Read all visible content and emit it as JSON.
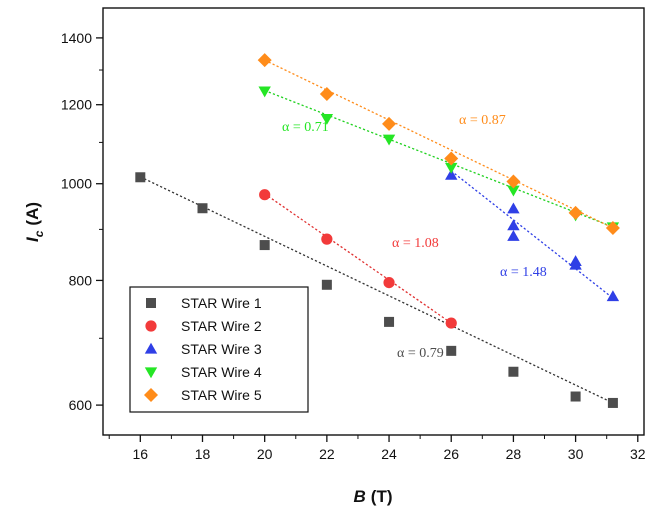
{
  "chart_data": {
    "type": "scatter",
    "title": "",
    "xlabel": {
      "var": "B",
      "unit": "(T)"
    },
    "ylabel": {
      "var": "I",
      "sub": "c",
      "unit": "(A)"
    },
    "x_range": [
      14.8,
      32.2
    ],
    "y_range": [
      560,
      1500
    ],
    "y_scale": "log",
    "x_ticks": [
      16,
      18,
      20,
      22,
      24,
      26,
      28,
      30,
      32
    ],
    "x_minor_ticks": [
      15,
      17,
      19,
      21,
      23,
      25,
      27,
      29,
      31
    ],
    "y_ticks": [
      600,
      800,
      1000,
      1200,
      1400
    ],
    "y_minor_ticks": [
      700,
      900,
      1100,
      1300
    ],
    "legend_position": "bottom-left",
    "grid": false,
    "series": [
      {
        "name": "STAR Wire 1",
        "marker": "square",
        "color": "#4d4d4d",
        "fit_color": "#333333",
        "x": [
          16,
          18,
          20,
          22,
          24,
          26,
          28,
          30,
          31.2
        ],
        "y": [
          1015,
          945,
          868,
          792,
          727,
          680,
          648,
          612,
          603
        ],
        "fit": [
          [
            16,
            1016
          ],
          [
            31.2,
            603
          ]
        ],
        "alpha_label": "α = 0.79"
      },
      {
        "name": "STAR Wire 2",
        "marker": "circle",
        "color": "#f23a3a",
        "fit_color": "#e03030",
        "x": [
          20,
          22,
          24,
          26
        ],
        "y": [
          975,
          880,
          796,
          725
        ],
        "fit": [
          [
            20,
            977
          ],
          [
            26,
            725
          ]
        ],
        "alpha_label": "α = 1.08"
      },
      {
        "name": "STAR Wire 3",
        "marker": "triangle-up",
        "color": "#2f3fe6",
        "fit_color": "#2f3fe6",
        "x": [
          26,
          28,
          28,
          28,
          30,
          30,
          31.2
        ],
        "y": [
          1020,
          944,
          908,
          886,
          836,
          829,
          771
        ],
        "fit": [
          [
            26,
            1030
          ],
          [
            31.2,
            768
          ]
        ],
        "alpha_label": "α = 1.48"
      },
      {
        "name": "STAR Wire 4",
        "marker": "triangle-down",
        "color": "#25e625",
        "fit_color": "#1fd11f",
        "x": [
          20,
          22,
          24,
          26,
          28,
          30,
          31.2
        ],
        "y": [
          1238,
          1162,
          1108,
          1038,
          985,
          930,
          905
        ],
        "fit": [
          [
            20,
            1240
          ],
          [
            31.2,
            905
          ]
        ],
        "alpha_label": "α = 0.71"
      },
      {
        "name": "STAR Wire 5",
        "marker": "diamond",
        "color": "#ff8c1a",
        "fit_color": "#ff8c1a",
        "x": [
          20,
          22,
          24,
          26,
          28,
          30,
          31.2
        ],
        "y": [
          1330,
          1230,
          1148,
          1060,
          1005,
          935,
          903
        ],
        "fit": [
          [
            20,
            1330
          ],
          [
            31.2,
            903
          ]
        ],
        "alpha_label": "α = 0.87"
      }
    ]
  }
}
